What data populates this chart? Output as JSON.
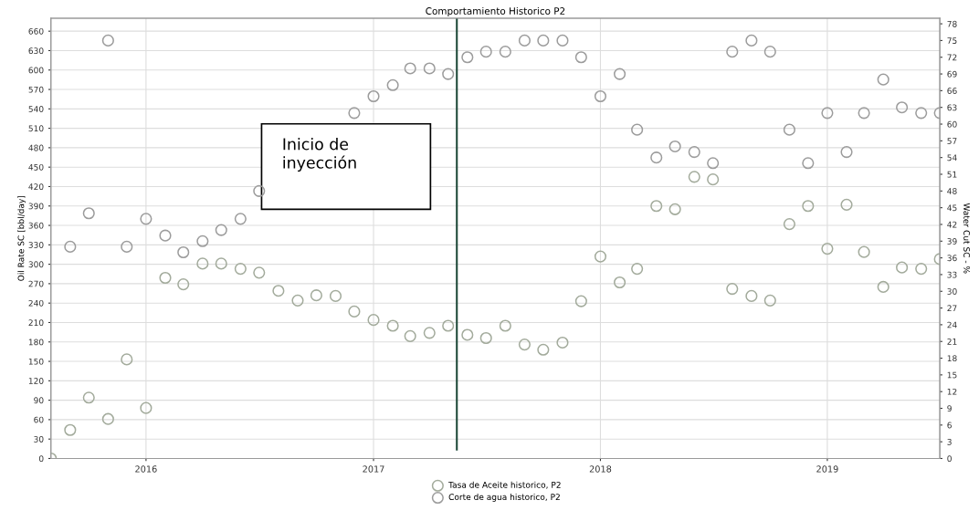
{
  "chart_data": {
    "type": "scatter",
    "title": "Comportamiento Historico P2",
    "ylabel": "Oil Rate SC [bbl/day]",
    "y2label": "Water Cut SC - %",
    "x": [
      "2015-08",
      "2015-09",
      "2015-10",
      "2015-11",
      "2015-12",
      "2016-01",
      "2016-02",
      "2016-03",
      "2016-04",
      "2016-05",
      "2016-06",
      "2016-07",
      "2016-08",
      "2016-09",
      "2016-10",
      "2016-11",
      "2016-12",
      "2017-01",
      "2017-02",
      "2017-03",
      "2017-04",
      "2017-05",
      "2017-06",
      "2017-07",
      "2017-08",
      "2017-09",
      "2017-10",
      "2017-11",
      "2017-12",
      "2018-01",
      "2018-02",
      "2018-03",
      "2018-04",
      "2018-05",
      "2018-06",
      "2018-07",
      "2018-08",
      "2018-09",
      "2018-10",
      "2018-11",
      "2018-12",
      "2019-01",
      "2019-02",
      "2019-03",
      "2019-04",
      "2019-05",
      "2019-06",
      "2019-07"
    ],
    "series": [
      {
        "name": "Tasa de Aceite historico, P2",
        "color": "#a3ab9c",
        "values": [
          0,
          44,
          94,
          61,
          153,
          78,
          279,
          269,
          301,
          301,
          293,
          287,
          259,
          244,
          252,
          251,
          227,
          214,
          205,
          189,
          194,
          205,
          191,
          186,
          205,
          176,
          168,
          179,
          243,
          312,
          272,
          293,
          390,
          385,
          435,
          431,
          262,
          251,
          244,
          362,
          390,
          324,
          392,
          319,
          265,
          295,
          293,
          308
        ]
      },
      {
        "name": "Corte de agua historico, P2",
        "color": "#9c9c9c",
        "axis": "y2",
        "values": [
          null,
          38,
          44,
          75,
          38,
          43,
          40,
          37,
          39,
          41,
          43,
          48,
          null,
          null,
          null,
          null,
          62,
          65,
          67,
          70,
          70,
          69,
          72,
          73,
          73,
          75,
          75,
          75,
          72,
          65,
          69,
          59,
          54,
          56,
          55,
          53,
          73,
          75,
          73,
          59,
          53,
          62,
          55,
          62,
          68,
          63,
          62,
          62
        ]
      }
    ],
    "xlim": [
      "2015-08-01",
      "2019-07-01"
    ],
    "xticks": [
      {
        "value": "2016-01-01",
        "label": "2016"
      },
      {
        "value": "2017-01-01",
        "label": "2017"
      },
      {
        "value": "2018-01-01",
        "label": "2018"
      },
      {
        "value": "2019-01-01",
        "label": "2019"
      }
    ],
    "ylim": [
      0,
      680
    ],
    "yticks": [
      0,
      30,
      60,
      90,
      120,
      150,
      180,
      210,
      240,
      270,
      300,
      330,
      360,
      390,
      420,
      450,
      480,
      510,
      540,
      570,
      600,
      630,
      660
    ],
    "y2lim": [
      0,
      79
    ],
    "y2ticks": [
      0,
      3,
      6,
      9,
      12,
      15,
      18,
      21,
      24,
      27,
      30,
      33,
      36,
      39,
      42,
      45,
      48,
      51,
      54,
      57,
      60,
      63,
      66,
      69,
      72,
      75,
      78
    ],
    "annotations": [
      "Inicio de\ninyección"
    ],
    "ref_lines": [
      {
        "axis": "x",
        "value": "2017-05-15",
        "color": "#1f4a3a",
        "line_style": "solid"
      }
    ],
    "grid": true,
    "legend": "bottom",
    "marker": "circle"
  }
}
